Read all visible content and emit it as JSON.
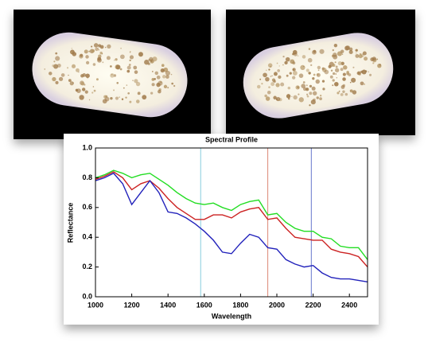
{
  "chart_data": {
    "type": "line",
    "title": "Spectral Profile",
    "x_label": "Wavelength",
    "y_label": "Reflectance",
    "x": [
      1000,
      1050,
      1100,
      1150,
      1200,
      1250,
      1300,
      1350,
      1400,
      1450,
      1500,
      1550,
      1600,
      1650,
      1700,
      1750,
      1800,
      1850,
      1900,
      1950,
      2000,
      2050,
      2100,
      2150,
      2200,
      2250,
      2300,
      2350,
      2400,
      2450,
      2500
    ],
    "series": [
      {
        "color": "#22dd22",
        "values": [
          0.8,
          0.82,
          0.85,
          0.83,
          0.8,
          0.82,
          0.83,
          0.79,
          0.75,
          0.7,
          0.66,
          0.63,
          0.62,
          0.63,
          0.6,
          0.58,
          0.62,
          0.64,
          0.65,
          0.55,
          0.56,
          0.5,
          0.46,
          0.44,
          0.44,
          0.4,
          0.39,
          0.34,
          0.33,
          0.33,
          0.25
        ]
      },
      {
        "color": "#cc2222",
        "values": [
          0.79,
          0.81,
          0.84,
          0.8,
          0.72,
          0.76,
          0.78,
          0.73,
          0.66,
          0.6,
          0.56,
          0.52,
          0.52,
          0.55,
          0.55,
          0.53,
          0.57,
          0.59,
          0.6,
          0.52,
          0.53,
          0.46,
          0.4,
          0.39,
          0.38,
          0.38,
          0.32,
          0.3,
          0.29,
          0.27,
          0.2
        ]
      },
      {
        "color": "#2222bb",
        "values": [
          0.78,
          0.8,
          0.83,
          0.76,
          0.62,
          0.7,
          0.78,
          0.7,
          0.57,
          0.56,
          0.53,
          0.49,
          0.44,
          0.38,
          0.3,
          0.29,
          0.36,
          0.42,
          0.4,
          0.33,
          0.32,
          0.25,
          0.22,
          0.2,
          0.21,
          0.16,
          0.13,
          0.12,
          0.12,
          0.11,
          0.1
        ]
      }
    ],
    "vlines": [
      {
        "x": 1580,
        "color": "#88ccdd"
      },
      {
        "x": 1950,
        "color": "#dd8877"
      },
      {
        "x": 2190,
        "color": "#6677cc"
      }
    ],
    "xlim": [
      1000,
      2500
    ],
    "xticks": [
      1000,
      1200,
      1400,
      1600,
      1800,
      2000,
      2200,
      2400
    ],
    "ylim": [
      0,
      1
    ],
    "yticks": [
      {
        "value": 0,
        "label": "0.0"
      },
      0.2,
      0.4,
      0.6,
      0.8,
      {
        "value": 1,
        "label": "1.0"
      }
    ]
  }
}
